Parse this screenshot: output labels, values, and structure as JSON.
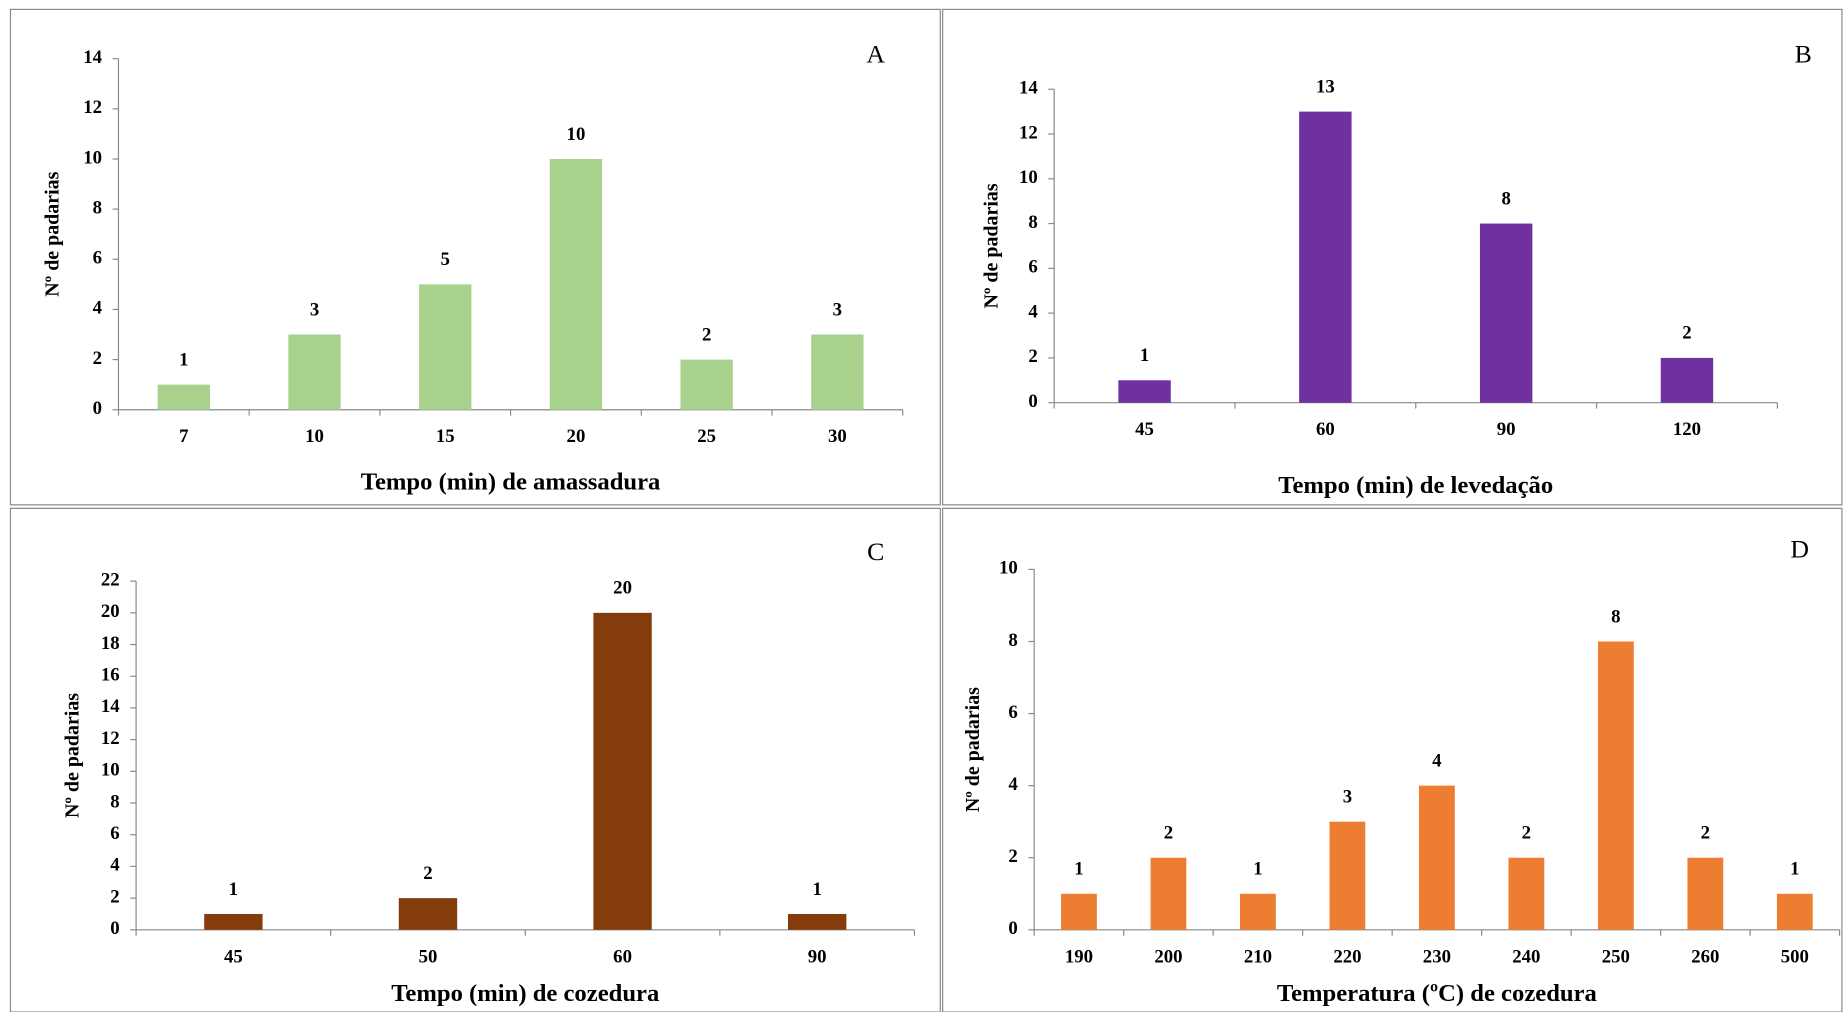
{
  "chart_data": [
    {
      "type": "bar",
      "annotation": "A",
      "y_label": "Nº de padarias",
      "x_label": "Tempo (min) de amassadura",
      "categories": [
        "7",
        "10",
        "15",
        "20",
        "25",
        "30"
      ],
      "values": [
        1,
        3,
        5,
        10,
        2,
        3
      ],
      "color": "#a9d18e",
      "ylim": [
        0,
        14
      ],
      "yticks": [
        0,
        2,
        4,
        6,
        8,
        10,
        12,
        14
      ]
    },
    {
      "type": "bar",
      "annotation": "B",
      "y_label": "Nº de padarias",
      "x_label": "Tempo (min) de levedação",
      "categories": [
        "45",
        "60",
        "90",
        "120"
      ],
      "values": [
        1,
        13,
        8,
        2
      ],
      "color": "#7030a0",
      "ylim": [
        0,
        14
      ],
      "yticks": [
        0,
        2,
        4,
        6,
        8,
        10,
        12,
        14
      ]
    },
    {
      "type": "bar",
      "annotation": "C",
      "y_label": "Nº de padarias",
      "x_label": "Tempo (min) de cozedura",
      "categories": [
        "45",
        "50",
        "60",
        "90"
      ],
      "values": [
        1,
        2,
        20,
        1
      ],
      "color": "#843c0c",
      "ylim": [
        0,
        22
      ],
      "yticks": [
        0,
        2,
        4,
        6,
        8,
        10,
        12,
        14,
        16,
        18,
        20,
        22
      ]
    },
    {
      "type": "bar",
      "annotation": "D",
      "y_label": "Nº de padarias",
      "x_label": "Temperatura (ºC) de cozedura",
      "categories": [
        "190",
        "200",
        "210",
        "220",
        "230",
        "240",
        "250",
        "260",
        "500"
      ],
      "values": [
        1,
        2,
        1,
        3,
        4,
        2,
        8,
        2,
        1
      ],
      "color": "#ed7d31",
      "ylim": [
        0,
        10
      ],
      "yticks": [
        0,
        2,
        4,
        6,
        8,
        10
      ]
    }
  ]
}
